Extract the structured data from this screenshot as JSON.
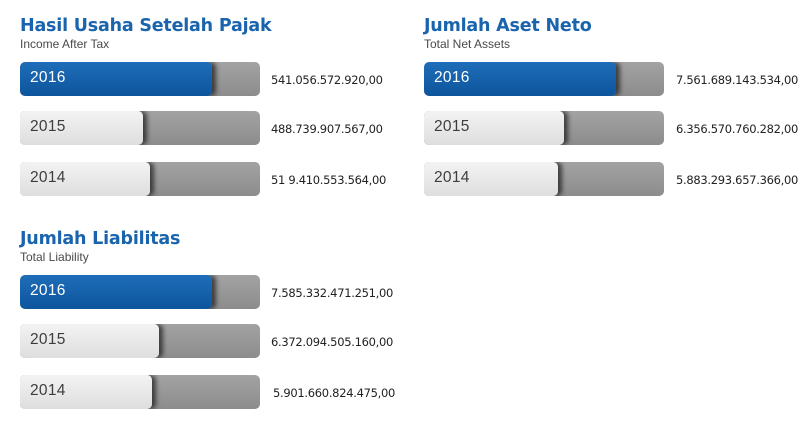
{
  "colors": {
    "title": "#1a64ae",
    "highlight_bar": "#0d5ca6",
    "bar_light": "#e5e5e5",
    "track": "#999999"
  },
  "chart_data": [
    {
      "type": "bar",
      "title": "Hasil Usaha Setelah Pajak",
      "subtitle": "Income After Tax",
      "categories": [
        "2016",
        "2015",
        "2014"
      ],
      "values": [
        541056572920.0,
        488739907567.0,
        519410553564.0
      ],
      "value_labels": [
        "541.056.572.920,00",
        "488.739.907.567,00",
        "51 9.410.553.564,00"
      ],
      "highlight_category": "2016"
    },
    {
      "type": "bar",
      "title": "Jumlah Aset Neto",
      "subtitle": "Total Net Assets",
      "categories": [
        "2016",
        "2015",
        "2014"
      ],
      "values": [
        7561689143534.0,
        6356570760282.0,
        5883293657366.0
      ],
      "value_labels": [
        "7.561.689.143.534,00",
        "6.356.570.760.282,00",
        "5.883.293.657.366,00"
      ],
      "highlight_category": "2016"
    },
    {
      "type": "bar",
      "title": "Jumlah Liabilitas",
      "subtitle": "Total Liability",
      "categories": [
        "2016",
        "2015",
        "2014"
      ],
      "values": [
        7585332471251.0,
        6372094505160.0,
        5901660824475.0
      ],
      "value_labels": [
        "7.585.332.471.251,00",
        "6.372.094.505.160,00",
        "5.901.660.824.475,00"
      ],
      "highlight_category": "2016"
    }
  ]
}
